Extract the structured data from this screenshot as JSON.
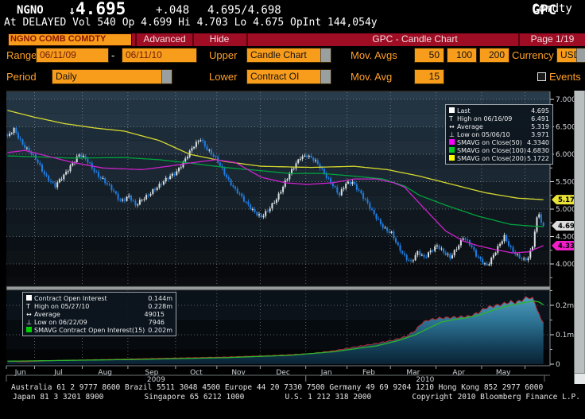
{
  "header": {
    "ticker": "NGNO",
    "arrow": "↓",
    "last": "4.695",
    "change": "+.048",
    "bid_ask": "4.695/4.698",
    "sector": "Comdty",
    "function_code": "GPC",
    "line2": "At DELAYED Vol 540 Op 4.699 Hi 4.703 Lo 4.675 OpInt 144,054y"
  },
  "menubar": {
    "security": "NGNO COMB COMDTY",
    "advanced": "Advanced",
    "hide": "Hide",
    "title": "GPC - Candle Chart",
    "page": "Page 1/19"
  },
  "controls": {
    "range_label": "Range",
    "range_start": "06/11/09",
    "range_separator": "-",
    "range_end": "06/11/10",
    "upper_label": "Upper",
    "upper_value": "Candle Chart",
    "mov_avgs_label": "Mov. Avgs",
    "mov_avg_values": [
      "50",
      "100",
      "200"
    ],
    "currency_label": "Currency",
    "currency_value": "USD",
    "period_label": "Period",
    "period_value": "Daily",
    "lower_label": "Lower",
    "lower_value": "Contract OI",
    "mov_avg_label": "Mov. Avg",
    "mov_avg_value": "15",
    "events_label": "Events"
  },
  "upper_legend": {
    "rows": [
      {
        "icon": "square",
        "color": "#ffffff",
        "label": "Last",
        "value": "4.695"
      },
      {
        "icon": "high-T",
        "label": "High on 06/16/09",
        "value": "6.491"
      },
      {
        "icon": "avg-arrow",
        "label": "Average",
        "value": "5.319"
      },
      {
        "icon": "low-T",
        "label": "Low on 05/06/10",
        "value": "3.971"
      },
      {
        "icon": "square",
        "color": "#ff00ff",
        "label": "SMAVG on Close(50)",
        "value": "4.3340"
      },
      {
        "icon": "square",
        "color": "#00cc22",
        "label": "SMAVG on Close(100)",
        "value": "4.6830"
      },
      {
        "icon": "square",
        "color": "#ffff00",
        "label": "SMAVG on Close(200)",
        "value": "5.1722"
      }
    ]
  },
  "lower_legend": {
    "rows": [
      {
        "icon": "square",
        "color": "#ffffff",
        "label": "Contract Open Interest",
        "value": "0.144m"
      },
      {
        "icon": "high-T",
        "label": "High on 05/27/10",
        "value": "0.228m"
      },
      {
        "icon": "avg-arrow",
        "label": "Average",
        "value": "49015"
      },
      {
        "icon": "low-T",
        "label": "Low on 06/22/09",
        "value": "7946"
      },
      {
        "icon": "square",
        "color": "#00d000",
        "label": "SMAVG Contract Open Interest(15)",
        "value": "0.202m"
      }
    ]
  },
  "footer": {
    "line1": "Australia 61 2 9777 8600 Brazil 5511 3048 4500 Europe 44 20 7330 7500 Germany 49 69 9204 1210 Hong Kong 852 2977 6000",
    "line2_segments": [
      "Japan 81 3 3201 8900",
      "Singapore 65 6212 1000",
      "U.S. 1 212 318 2000",
      "Copyright 2010 Bloomberg Finance L.P."
    ]
  },
  "chart_data": {
    "type": "candlestick+area",
    "range": {
      "start": "06/11/09",
      "end": "06/11/10",
      "days": 248
    },
    "colors": {
      "candle_up": "#d9e1e4",
      "candle_down": "#1f7de0",
      "sma50": "#cc22cc",
      "sma100": "#00a33e",
      "sma200": "#d6d92f",
      "oi_line": "#b5282f",
      "oi_sma": "#2db42d"
    },
    "upper": {
      "ylabel_ticks": [
        7.0,
        6.5,
        6.0,
        5.5,
        5.0,
        4.5,
        4.0
      ],
      "stats": {
        "last": 4.695,
        "high": {
          "date": "06/16/09",
          "value": 6.491,
          "day_index": 3
        },
        "average": 5.319,
        "low": {
          "date": "05/06/10",
          "value": 3.971,
          "day_index": 221
        },
        "sma50_last": 4.334,
        "sma100_last": 4.683,
        "sma200_last": 5.1722
      },
      "price_tags": [
        {
          "value": 5.172,
          "label": "5.172",
          "bg": "#e8e337",
          "fg": "#000000"
        },
        {
          "value": 4.695,
          "label": "4.695",
          "bg": "#dcdcdc",
          "fg": "#000000"
        },
        {
          "value": 4.334,
          "label": "4.334",
          "bg": "#f01ec8",
          "fg": "#000000"
        }
      ],
      "close_anchors": [
        [
          0,
          6.3
        ],
        [
          3,
          6.45
        ],
        [
          7,
          6.2
        ],
        [
          10,
          6.05
        ],
        [
          13,
          5.9
        ],
        [
          17,
          5.65
        ],
        [
          22,
          5.42
        ],
        [
          26,
          5.6
        ],
        [
          30,
          5.85
        ],
        [
          33,
          6.0
        ],
        [
          36,
          5.9
        ],
        [
          40,
          5.7
        ],
        [
          44,
          5.55
        ],
        [
          48,
          5.35
        ],
        [
          52,
          5.15
        ],
        [
          56,
          5.25
        ],
        [
          59,
          5.05
        ],
        [
          63,
          5.2
        ],
        [
          67,
          5.35
        ],
        [
          71,
          5.45
        ],
        [
          75,
          5.6
        ],
        [
          78,
          5.7
        ],
        [
          82,
          5.9
        ],
        [
          86,
          6.15
        ],
        [
          89,
          6.3
        ],
        [
          92,
          6.1
        ],
        [
          95,
          5.95
        ],
        [
          97,
          5.85
        ],
        [
          101,
          5.6
        ],
        [
          105,
          5.35
        ],
        [
          109,
          5.15
        ],
        [
          113,
          5.0
        ],
        [
          117,
          4.85
        ],
        [
          120,
          4.95
        ],
        [
          124,
          5.2
        ],
        [
          128,
          5.5
        ],
        [
          132,
          5.75
        ],
        [
          135,
          5.95
        ],
        [
          138,
          6.0
        ],
        [
          141,
          5.9
        ],
        [
          144,
          5.75
        ],
        [
          147,
          5.6
        ],
        [
          150,
          5.45
        ],
        [
          153,
          5.25
        ],
        [
          156,
          5.45
        ],
        [
          159,
          5.5
        ],
        [
          162,
          5.35
        ],
        [
          165,
          5.15
        ],
        [
          168,
          4.95
        ],
        [
          171,
          4.8
        ],
        [
          174,
          4.65
        ],
        [
          177,
          4.55
        ],
        [
          180,
          4.3
        ],
        [
          183,
          4.15
        ],
        [
          186,
          4.05
        ],
        [
          189,
          4.2
        ],
        [
          192,
          4.1
        ],
        [
          195,
          4.25
        ],
        [
          198,
          4.35
        ],
        [
          201,
          4.2
        ],
        [
          204,
          4.1
        ],
        [
          207,
          4.3
        ],
        [
          210,
          4.5
        ],
        [
          213,
          4.35
        ],
        [
          216,
          4.15
        ],
        [
          219,
          4.05
        ],
        [
          221,
          3.98
        ],
        [
          224,
          4.15
        ],
        [
          227,
          4.35
        ],
        [
          229,
          4.5
        ],
        [
          232,
          4.3
        ],
        [
          235,
          4.15
        ],
        [
          238,
          4.05
        ],
        [
          240,
          4.1
        ],
        [
          242,
          4.35
        ],
        [
          243,
          4.6
        ],
        [
          244,
          4.85
        ],
        [
          245,
          4.95
        ],
        [
          246,
          4.75
        ],
        [
          247,
          4.695
        ]
      ],
      "sma200_anchors": [
        [
          0,
          6.8
        ],
        [
          12,
          6.68
        ],
        [
          26,
          6.56
        ],
        [
          40,
          6.48
        ],
        [
          54,
          6.42
        ],
        [
          70,
          6.25
        ],
        [
          84,
          6.0
        ],
        [
          100,
          5.87
        ],
        [
          117,
          5.78
        ],
        [
          140,
          5.76
        ],
        [
          160,
          5.78
        ],
        [
          175,
          5.72
        ],
        [
          190,
          5.6
        ],
        [
          205,
          5.45
        ],
        [
          220,
          5.3
        ],
        [
          235,
          5.2
        ],
        [
          247,
          5.172
        ]
      ],
      "sma100_anchors": [
        [
          0,
          5.97
        ],
        [
          30,
          5.93
        ],
        [
          54,
          5.94
        ],
        [
          70,
          5.9
        ],
        [
          84,
          5.84
        ],
        [
          100,
          5.76
        ],
        [
          117,
          5.7
        ],
        [
          130,
          5.65
        ],
        [
          145,
          5.65
        ],
        [
          160,
          5.6
        ],
        [
          173,
          5.55
        ],
        [
          183,
          5.42
        ],
        [
          190,
          5.25
        ],
        [
          202,
          5.07
        ],
        [
          217,
          4.87
        ],
        [
          232,
          4.72
        ],
        [
          242,
          4.69
        ],
        [
          247,
          4.683
        ]
      ],
      "sma50_anchors": [
        [
          0,
          6.03
        ],
        [
          8,
          6.07
        ],
        [
          18,
          5.97
        ],
        [
          30,
          5.85
        ],
        [
          44,
          5.75
        ],
        [
          62,
          5.72
        ],
        [
          74,
          5.78
        ],
        [
          84,
          5.84
        ],
        [
          96,
          5.9
        ],
        [
          105,
          5.85
        ],
        [
          117,
          5.58
        ],
        [
          128,
          5.48
        ],
        [
          138,
          5.45
        ],
        [
          150,
          5.48
        ],
        [
          160,
          5.55
        ],
        [
          170,
          5.55
        ],
        [
          178,
          5.48
        ],
        [
          183,
          5.4
        ],
        [
          190,
          5.1
        ],
        [
          196,
          4.85
        ],
        [
          202,
          4.6
        ],
        [
          210,
          4.42
        ],
        [
          217,
          4.33
        ],
        [
          225,
          4.26
        ],
        [
          233,
          4.2
        ],
        [
          240,
          4.22
        ],
        [
          247,
          4.334
        ]
      ]
    },
    "lower": {
      "ylabel_ticks": [
        {
          "value": 0.2,
          "label": "0.2m"
        },
        {
          "value": 0.1,
          "label": "0.1m"
        },
        {
          "value": 0,
          "label": "0"
        }
      ],
      "oi_anchors": [
        [
          0,
          0.01
        ],
        [
          7,
          0.008
        ],
        [
          20,
          0.012
        ],
        [
          40,
          0.015
        ],
        [
          60,
          0.018
        ],
        [
          80,
          0.021
        ],
        [
          100,
          0.024
        ],
        [
          117,
          0.028
        ],
        [
          130,
          0.032
        ],
        [
          140,
          0.036
        ],
        [
          150,
          0.045
        ],
        [
          160,
          0.058
        ],
        [
          170,
          0.07
        ],
        [
          178,
          0.082
        ],
        [
          184,
          0.095
        ],
        [
          188,
          0.115
        ],
        [
          191,
          0.14
        ],
        [
          194,
          0.15
        ],
        [
          200,
          0.157
        ],
        [
          208,
          0.16
        ],
        [
          213,
          0.163
        ],
        [
          217,
          0.175
        ],
        [
          220,
          0.19
        ],
        [
          223,
          0.196
        ],
        [
          226,
          0.2
        ],
        [
          229,
          0.206
        ],
        [
          232,
          0.212
        ],
        [
          234,
          0.209
        ],
        [
          236,
          0.214
        ],
        [
          238,
          0.221
        ],
        [
          240,
          0.228
        ],
        [
          242,
          0.222
        ],
        [
          243,
          0.21
        ],
        [
          244,
          0.19
        ],
        [
          245,
          0.168
        ],
        [
          246,
          0.15
        ],
        [
          247,
          0.144
        ]
      ],
      "oi_sma_anchors": [
        [
          0,
          0.01
        ],
        [
          60,
          0.016
        ],
        [
          100,
          0.022
        ],
        [
          130,
          0.03
        ],
        [
          150,
          0.042
        ],
        [
          170,
          0.062
        ],
        [
          180,
          0.08
        ],
        [
          188,
          0.1
        ],
        [
          194,
          0.122
        ],
        [
          200,
          0.143
        ],
        [
          206,
          0.152
        ],
        [
          212,
          0.158
        ],
        [
          218,
          0.168
        ],
        [
          224,
          0.184
        ],
        [
          230,
          0.197
        ],
        [
          236,
          0.206
        ],
        [
          240,
          0.212
        ],
        [
          243,
          0.214
        ],
        [
          245,
          0.211
        ],
        [
          247,
          0.202
        ]
      ]
    },
    "months": [
      {
        "label": "Jun",
        "b": 0
      },
      {
        "label": "Jul",
        "b": 13
      },
      {
        "label": "Aug",
        "b": 35
      },
      {
        "label": "Sep",
        "b": 56
      },
      {
        "label": "Oct",
        "b": 78
      },
      {
        "label": "Nov",
        "b": 97
      },
      {
        "label": "Dec",
        "b": 117
      },
      {
        "label": "Jan",
        "b": 138
      },
      {
        "label": "Feb",
        "b": 157
      },
      {
        "label": "Mar",
        "b": 177
      },
      {
        "label": "Apr",
        "b": 198
      },
      {
        "label": "May",
        "b": 219
      },
      {
        "label": "",
        "b": 239
      }
    ],
    "years": [
      {
        "label": "2009",
        "from": 0,
        "to": 138
      },
      {
        "label": "2010",
        "from": 138,
        "to": 248
      }
    ]
  }
}
